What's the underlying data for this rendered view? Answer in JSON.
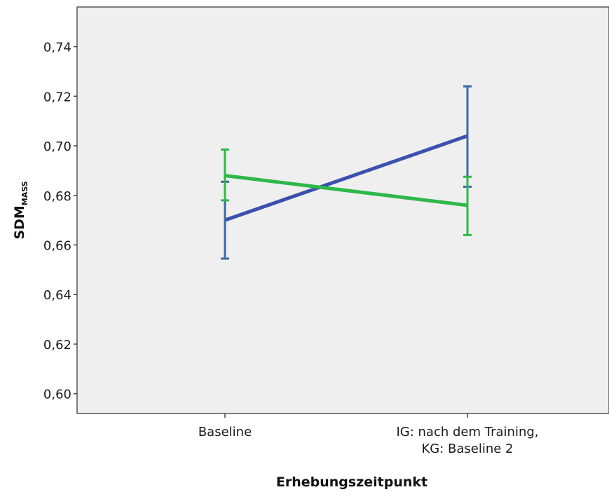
{
  "chart_data": {
    "type": "line",
    "title": "",
    "xlabel": "Erhebungszeitpunkt",
    "ylabel": {
      "main": "SDM",
      "subscript": "MASS"
    },
    "categories": [
      [
        "Baseline"
      ],
      [
        "IG: nach dem Training,",
        "KG: Baseline 2"
      ]
    ],
    "ylim": [
      0.592,
      0.756
    ],
    "yticks": [
      0.6,
      0.62,
      0.64,
      0.66,
      0.68,
      0.7,
      0.72,
      0.74
    ],
    "ytick_labels": [
      "0,60",
      "0,62",
      "0,64",
      "0,66",
      "0,68",
      "0,70",
      "0,72",
      "0,74"
    ],
    "grid": false,
    "plot_background": "#efefef",
    "series": [
      {
        "color": "#3c50b0",
        "errorbar_color": "#3a6aa4",
        "values": [
          0.67,
          0.704
        ],
        "error_low": [
          0.6545,
          0.6835
        ],
        "error_high": [
          0.6855,
          0.724
        ]
      },
      {
        "color": "#2eb84a",
        "errorbar_color": "#2eb84a",
        "values": [
          0.688,
          0.676
        ],
        "error_low": [
          0.678,
          0.664
        ],
        "error_high": [
          0.6985,
          0.6875
        ]
      }
    ]
  }
}
